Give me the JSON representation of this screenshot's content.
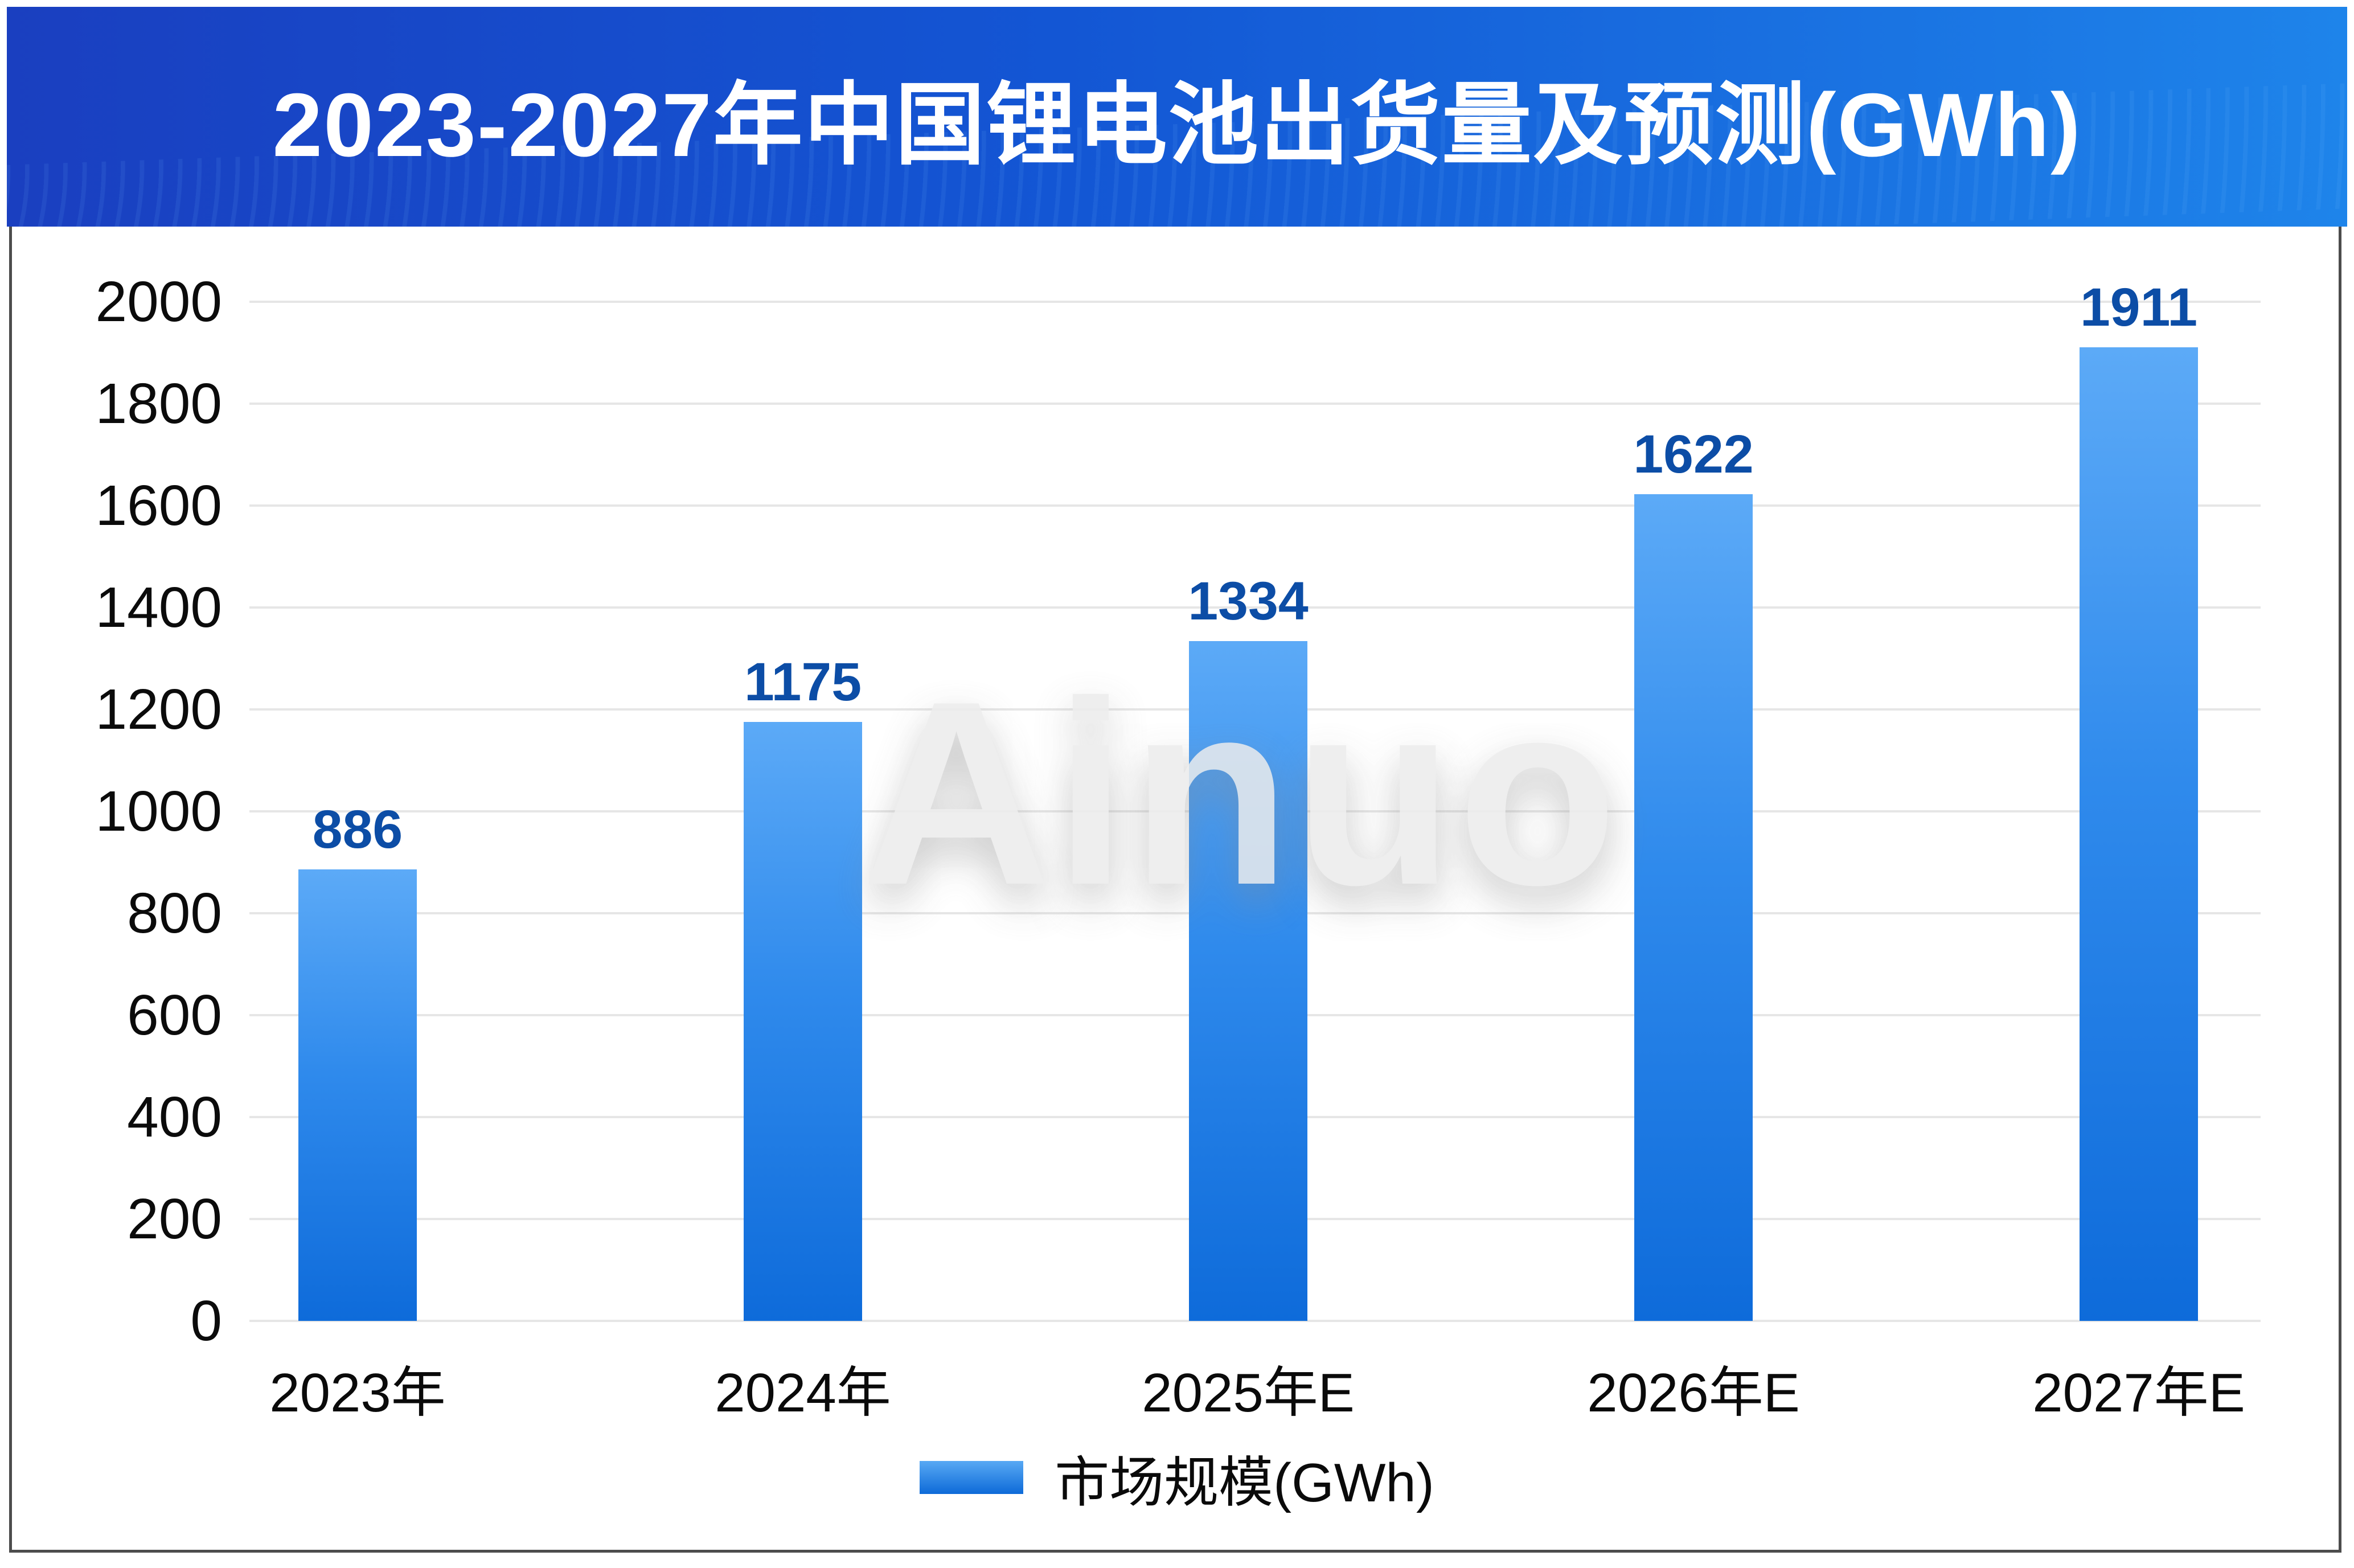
{
  "header": {
    "title": "2023-2027年中国锂电池出货量及预测(GWh)"
  },
  "watermark": {
    "text": "Ainuo"
  },
  "legend": {
    "label": "市场规模(GWh)"
  },
  "colors": {
    "header_gradient_left": "#1a3fc0",
    "header_gradient_right": "#1e84ea",
    "bar_gradient_top": "#5caaf7",
    "bar_gradient_bottom": "#0e6bda",
    "value_label": "#0c4da6",
    "gridline": "#e6e6e6",
    "tick_text": "#0a0a0a",
    "frame_border": "#4c4c4c",
    "title_text": "#ffffff"
  },
  "chart_data": {
    "type": "bar",
    "title": "2023-2027年中国锂电池出货量及预测(GWh)",
    "categories": [
      "2023年",
      "2024年",
      "2025年E",
      "2026年E",
      "2027年E"
    ],
    "values": [
      886,
      1175,
      1334,
      1622,
      1911
    ],
    "series_name": "市场规模(GWh)",
    "xlabel": "",
    "ylabel": "",
    "ylim": [
      0,
      2000
    ],
    "ytick_step": 200,
    "yticks": [
      0,
      200,
      400,
      600,
      800,
      1000,
      1200,
      1400,
      1600,
      1800,
      2000
    ],
    "grid": true,
    "legend_position": "bottom",
    "value_labels_shown": true
  }
}
